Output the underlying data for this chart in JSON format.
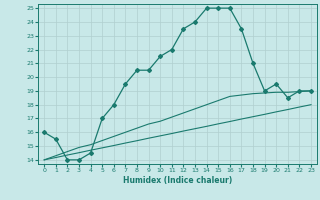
{
  "xlabel": "Humidex (Indice chaleur)",
  "x": [
    0,
    1,
    2,
    3,
    4,
    5,
    6,
    7,
    8,
    9,
    10,
    11,
    12,
    13,
    14,
    15,
    16,
    17,
    18,
    19,
    20,
    21,
    22,
    23
  ],
  "y_main": [
    16.0,
    15.5,
    14.0,
    14.0,
    14.5,
    17.0,
    18.0,
    19.5,
    20.5,
    20.5,
    21.5,
    22.0,
    23.5,
    24.0,
    25.0,
    25.0,
    25.0,
    23.5,
    21.0,
    19.0,
    19.5,
    18.5,
    19.0,
    19.0
  ],
  "y_line1": [
    14.0,
    14.3,
    14.6,
    14.9,
    15.1,
    15.4,
    15.7,
    16.0,
    16.3,
    16.6,
    16.8,
    17.1,
    17.4,
    17.7,
    18.0,
    18.3,
    18.6,
    18.7,
    18.8,
    18.85,
    18.9,
    18.9,
    18.95,
    19.0
  ],
  "y_line2": [
    14.0,
    14.17,
    14.35,
    14.52,
    14.7,
    14.87,
    15.04,
    15.22,
    15.39,
    15.57,
    15.74,
    15.91,
    16.09,
    16.26,
    16.43,
    16.61,
    16.78,
    16.96,
    17.13,
    17.3,
    17.48,
    17.65,
    17.83,
    18.0
  ],
  "line_color": "#1a7a6e",
  "bg_color": "#c8e8e8",
  "grid_color": "#b0cfcf",
  "ylim": [
    14,
    25
  ],
  "xlim": [
    -0.5,
    23.5
  ]
}
